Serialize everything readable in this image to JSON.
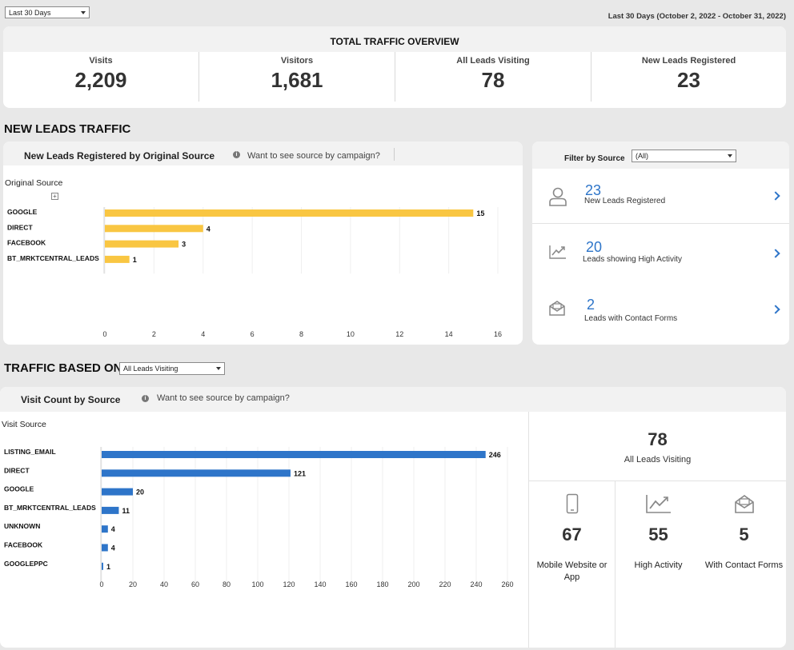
{
  "header": {
    "range_select": "Last 30 Days",
    "range_text": "Last 30 Days (October 2, 2022 - October 31, 2022)"
  },
  "overview": {
    "title": "TOTAL TRAFFIC OVERVIEW",
    "kpis": [
      {
        "label": "Visits",
        "value": "2,209"
      },
      {
        "label": "Visitors",
        "value": "1,681"
      },
      {
        "label": "All Leads Visiting",
        "value": "78"
      },
      {
        "label": "New Leads Registered",
        "value": "23"
      }
    ]
  },
  "new_leads": {
    "section_title": "NEW LEADS TRAFFIC",
    "chart_title": "New Leads Registered by Original Source",
    "hint": "Want to see source by campaign?",
    "axis_header": "Original Source",
    "filter_label": "Filter by Source",
    "filter_value": "(All)",
    "stats": [
      {
        "value": "23",
        "label": "New Leads Registered",
        "icon": "person-icon"
      },
      {
        "value": "20",
        "label": "Leads showing High Activity",
        "icon": "trend-icon"
      },
      {
        "value": "2",
        "label": "Leads with Contact Forms",
        "icon": "envelope-icon"
      }
    ]
  },
  "traffic": {
    "section_title": "TRAFFIC BASED ON",
    "select_value": "All Leads Visiting",
    "chart_title": "Visit Count by Source",
    "hint": "Want to see source by campaign?",
    "axis_header": "Visit Source",
    "total_value": "78",
    "total_label": "All Leads Visiting",
    "breakdown": [
      {
        "value": "67",
        "label": "Mobile Website or App",
        "icon": "mobile-icon"
      },
      {
        "value": "55",
        "label": "High Activity",
        "icon": "trend-icon"
      },
      {
        "value": "5",
        "label": "With Contact Forms",
        "icon": "envelope-icon"
      }
    ]
  },
  "colors": {
    "bar_yellow": "#f9c642",
    "bar_blue": "#2e75c9",
    "accent": "#2e75c9"
  },
  "chart_data": [
    {
      "type": "bar",
      "orientation": "horizontal",
      "title": "New Leads Registered by Original Source",
      "categories": [
        "GOOGLE",
        "DIRECT",
        "FACEBOOK",
        "BT_MRKTCENTRAL_LEADS"
      ],
      "values": [
        15,
        4,
        3,
        1
      ],
      "ticks": [
        "0",
        "2",
        "4",
        "6",
        "8",
        "10",
        "12",
        "14",
        "16"
      ],
      "xlim": [
        0,
        16
      ],
      "color": "#f9c642"
    },
    {
      "type": "bar",
      "orientation": "horizontal",
      "title": "Visit Count by Source",
      "categories": [
        "LISTING_EMAIL",
        "DIRECT",
        "GOOGLE",
        "BT_MRKTCENTRAL_LEADS",
        "UNKNOWN",
        "FACEBOOK",
        "GOOGLEPPC"
      ],
      "values": [
        246,
        121,
        20,
        11,
        4,
        4,
        1
      ],
      "ticks": [
        "0",
        "20",
        "40",
        "60",
        "80",
        "100",
        "120",
        "140",
        "160",
        "180",
        "200",
        "220",
        "240",
        "260"
      ],
      "xlim": [
        0,
        260
      ],
      "color": "#2e75c9"
    }
  ]
}
